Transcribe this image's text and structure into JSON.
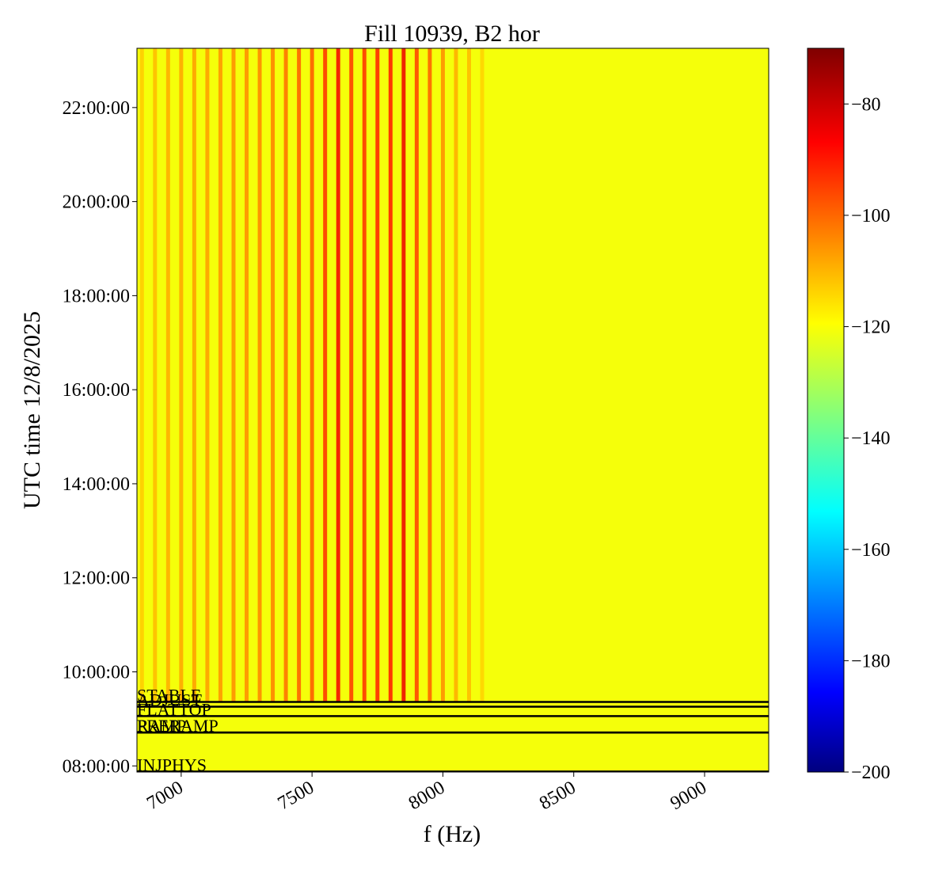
{
  "chart_data": {
    "type": "spectrogram",
    "title": "Fill 10939, B2 hor",
    "xlabel": "f (Hz)",
    "ylabel": "UTC time 12/8/2025",
    "xlim": [
      6831,
      9245
    ],
    "xticks": [
      7000,
      7500,
      8000,
      8500,
      9000
    ],
    "ylim": [
      7.87,
      23.26
    ],
    "yticks": [
      {
        "value": 8,
        "label": "08:00:00"
      },
      {
        "value": 10,
        "label": "10:00:00"
      },
      {
        "value": 12,
        "label": "12:00:00"
      },
      {
        "value": 14,
        "label": "14:00:00"
      },
      {
        "value": 16,
        "label": "16:00:00"
      },
      {
        "value": 18,
        "label": "18:00:00"
      },
      {
        "value": 20,
        "label": "20:00:00"
      },
      {
        "value": 22,
        "label": "22:00:00"
      }
    ],
    "colormap": "jet",
    "clim": [
      -200,
      -70
    ],
    "cticks": [
      {
        "value": -80,
        "label": "−80"
      },
      {
        "value": -100,
        "label": "−100"
      },
      {
        "value": -120,
        "label": "−120"
      },
      {
        "value": -140,
        "label": "−140"
      },
      {
        "value": -160,
        "label": "−160"
      },
      {
        "value": -180,
        "label": "−180"
      },
      {
        "value": -200,
        "label": "−200"
      }
    ],
    "background_level": -120,
    "lines": {
      "x": [
        6850,
        6900,
        6950,
        7000,
        7050,
        7100,
        7150,
        7200,
        7250,
        7300,
        7350,
        7400,
        7450,
        7500,
        7550,
        7600,
        7650,
        7700,
        7750,
        7800,
        7850,
        7900,
        7950,
        8000,
        8050,
        8100,
        8150
      ],
      "values": [
        -112,
        -110,
        -108,
        -107,
        -106,
        -106,
        -105,
        -104,
        -104,
        -103,
        -102,
        -100,
        -98,
        -97,
        -92,
        -85,
        -93,
        -92,
        -90,
        -89,
        -84,
        -94,
        -98,
        -104,
        -108,
        -110,
        -113
      ]
    },
    "modes": [
      {
        "label": "STABLE",
        "time": 9.36
      },
      {
        "label": "ADJUST",
        "time": 9.26
      },
      {
        "label": "FLATTOP",
        "time": 9.06
      },
      {
        "label": "RAMP",
        "time": 8.71
      },
      {
        "label": "PRERAMP",
        "time": 8.71
      },
      {
        "label": "INJPHYS",
        "time": 7.88
      }
    ]
  }
}
